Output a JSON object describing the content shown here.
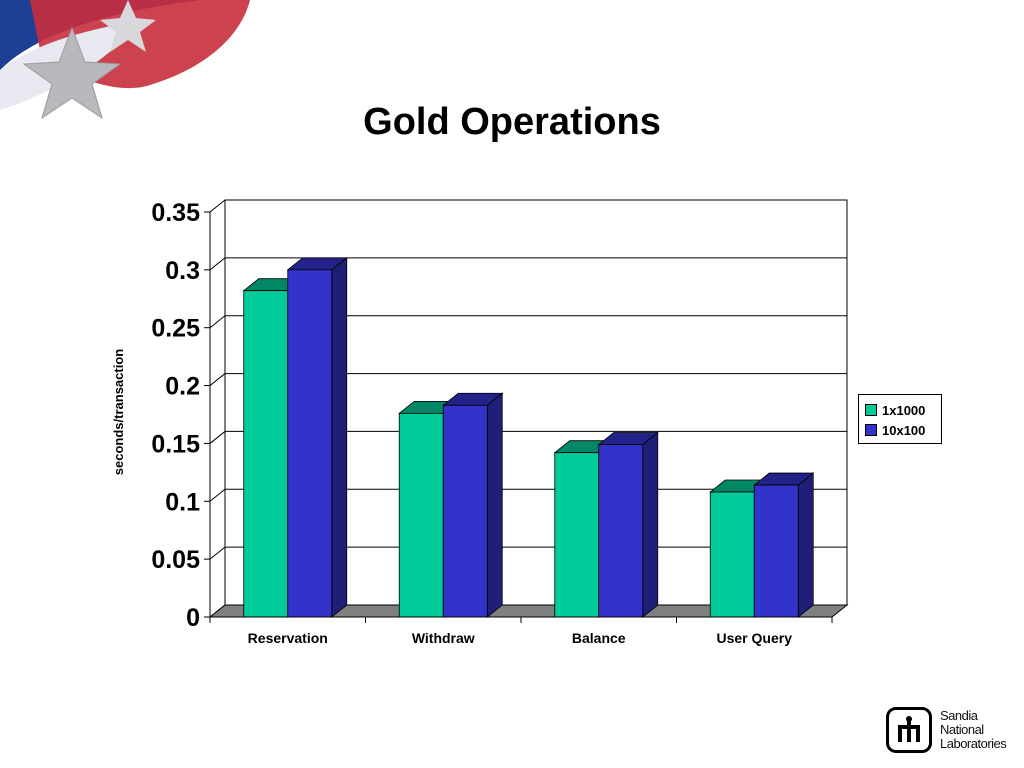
{
  "slide": {
    "title": "Gold Operations"
  },
  "colors": {
    "series_1x1000": "#00cc99",
    "series_10x100": "#3333cc",
    "floor": "#808080"
  },
  "logo": {
    "icon": "sandia-thunderbird-icon",
    "lines": [
      "Sandia",
      "National",
      "Laboratories"
    ]
  },
  "chart_data": {
    "type": "bar",
    "style": "3d-clustered-column",
    "categories": [
      "Reservation",
      "Withdraw",
      "Balance",
      "User Query"
    ],
    "series": [
      {
        "name": "1x1000",
        "values": [
          0.282,
          0.176,
          0.142,
          0.108
        ]
      },
      {
        "name": "10x100",
        "values": [
          0.3,
          0.183,
          0.149,
          0.114
        ]
      }
    ],
    "ylabel": "seconds/transaction",
    "xlabel": "",
    "ylim": [
      0,
      0.35
    ],
    "yticks": [
      "0",
      "0.05",
      "0.1",
      "0.15",
      "0.2",
      "0.25",
      "0.3",
      "0.35"
    ],
    "grid": true,
    "legend_position": "right"
  }
}
